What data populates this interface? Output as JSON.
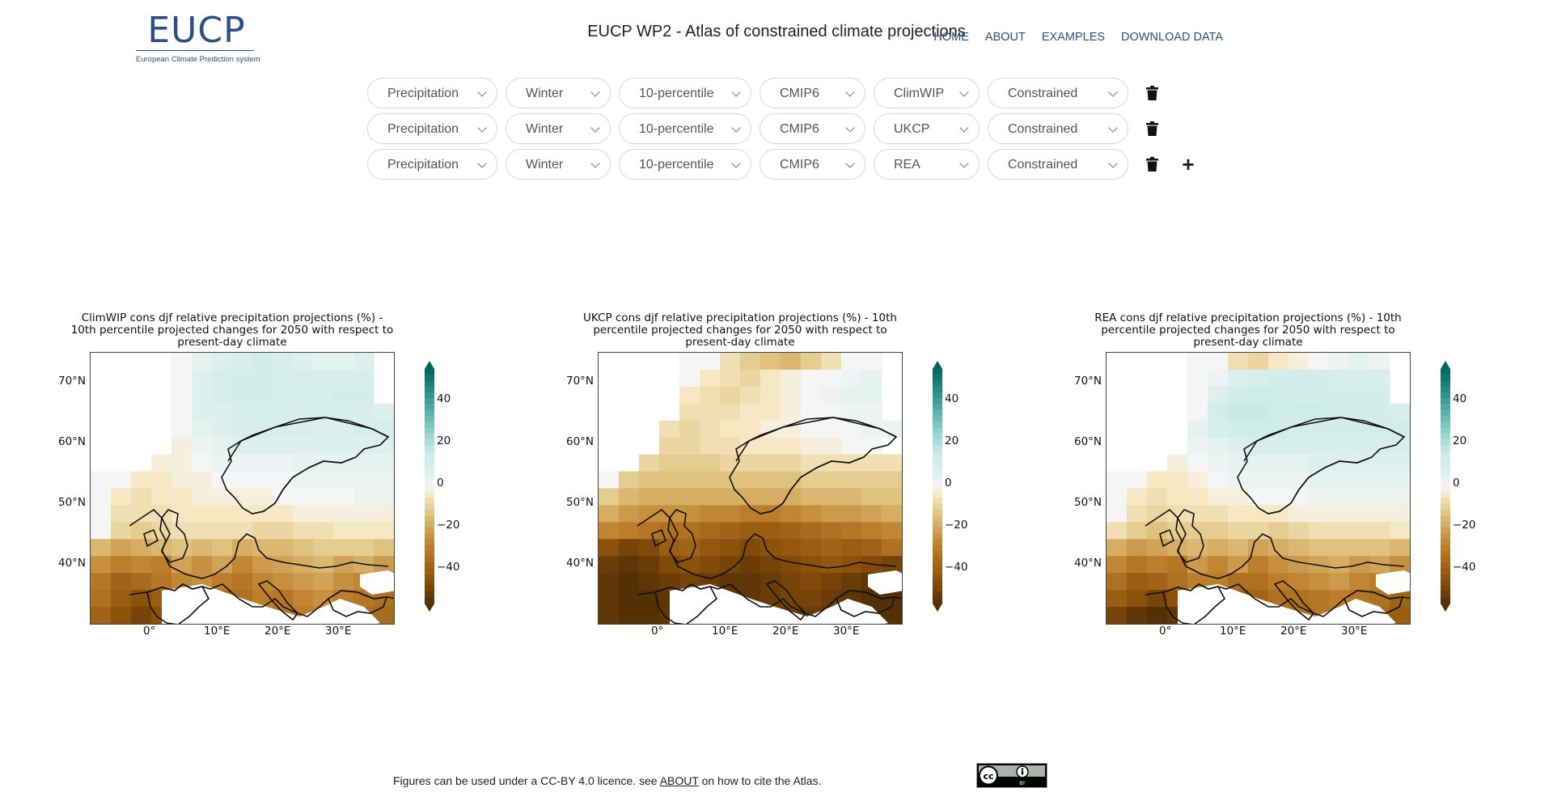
{
  "header": {
    "logo_text": "EUCP",
    "logo_subtitle": "European Climate Prediction system",
    "title": "EUCP WP2 - Atlas of constrained climate projections",
    "nav": [
      "HOME",
      "ABOUT",
      "EXAMPLES",
      "DOWNLOAD DATA"
    ]
  },
  "selector_rows": [
    {
      "variable": "Precipitation",
      "season": "Winter",
      "percentile": "10-percentile",
      "ensemble": "CMIP6",
      "method": "ClimWIP",
      "constraint": "Constrained"
    },
    {
      "variable": "Precipitation",
      "season": "Winter",
      "percentile": "10-percentile",
      "ensemble": "CMIP6",
      "method": "UKCP",
      "constraint": "Constrained"
    },
    {
      "variable": "Precipitation",
      "season": "Winter",
      "percentile": "10-percentile",
      "ensemble": "CMIP6",
      "method": "REA",
      "constraint": "Constrained"
    }
  ],
  "icons": {
    "delete": "trash-icon",
    "add": "plus-icon"
  },
  "chart_data": [
    {
      "type": "heatmap",
      "title_lines": [
        "ClimWIP cons djf relative precipitation projections (%) -",
        "10th percentile projected changes for 2050 with respect to",
        "present-day climate"
      ],
      "lat_ticks": [
        "70°N",
        "60°N",
        "50°N",
        "40°N"
      ],
      "lon_ticks": [
        "0°",
        "10°E",
        "20°E",
        "30°E"
      ],
      "colorbar_ticks": [
        "40",
        "20",
        "0",
        "−20",
        "−40"
      ],
      "colorbar_range": [
        -50,
        50
      ],
      "grid_values": [
        [
          0,
          0,
          0,
          0,
          0,
          4,
          6,
          8,
          10,
          8,
          6,
          4,
          4,
          6,
          0
        ],
        [
          0,
          0,
          0,
          0,
          0,
          6,
          8,
          10,
          10,
          8,
          8,
          8,
          8,
          8,
          0
        ],
        [
          0,
          0,
          0,
          0,
          0,
          6,
          8,
          10,
          10,
          8,
          8,
          8,
          10,
          10,
          0
        ],
        [
          0,
          0,
          0,
          0,
          0,
          6,
          6,
          8,
          8,
          8,
          8,
          8,
          8,
          8,
          6
        ],
        [
          0,
          0,
          0,
          0,
          0,
          4,
          6,
          8,
          8,
          8,
          8,
          6,
          6,
          8,
          8
        ],
        [
          0,
          0,
          0,
          0,
          -2,
          2,
          4,
          6,
          6,
          6,
          6,
          6,
          6,
          6,
          6
        ],
        [
          0,
          0,
          0,
          -2,
          -2,
          0,
          2,
          2,
          2,
          2,
          4,
          4,
          4,
          4,
          4
        ],
        [
          0,
          0,
          -4,
          -4,
          -2,
          -2,
          0,
          0,
          0,
          0,
          2,
          2,
          2,
          2,
          2
        ],
        [
          0,
          -4,
          -6,
          -4,
          -4,
          -2,
          -2,
          -2,
          -2,
          0,
          0,
          0,
          0,
          2,
          2
        ],
        [
          0,
          -6,
          -6,
          -6,
          -4,
          -4,
          -4,
          -4,
          -4,
          -4,
          -2,
          -2,
          -2,
          -2,
          -2
        ],
        [
          0,
          -8,
          -10,
          -8,
          -6,
          -6,
          -6,
          -6,
          -8,
          -8,
          -6,
          -6,
          -4,
          -4,
          -4
        ],
        [
          -14,
          -18,
          -16,
          -14,
          -12,
          -14,
          -12,
          -16,
          -14,
          -14,
          -12,
          -10,
          -10,
          -10,
          -12
        ],
        [
          -22,
          -26,
          -24,
          -26,
          -18,
          -22,
          -18,
          -24,
          -20,
          -18,
          -16,
          -14,
          -18,
          -16,
          -20
        ],
        [
          -28,
          -34,
          -32,
          -28,
          -24,
          -22,
          -26,
          -28,
          -24,
          -22,
          -20,
          -18,
          -22,
          -24,
          -26
        ],
        [
          -30,
          -36,
          -40,
          -36,
          -34,
          -30,
          -32,
          -30,
          -26,
          -28,
          -24,
          -22,
          -26,
          -28,
          -30
        ],
        [
          -34,
          -40,
          -44,
          -40,
          -38,
          -36,
          -34,
          -30,
          -28,
          -28,
          -26,
          -24,
          -28,
          -30,
          -32
        ]
      ]
    },
    {
      "type": "heatmap",
      "title_lines": [
        "UKCP cons djf relative precipitation projections (%) - 10th",
        "percentile projected changes for 2050 with respect to",
        "present-day climate"
      ],
      "lat_ticks": [
        "70°N",
        "60°N",
        "50°N",
        "40°N"
      ],
      "lon_ticks": [
        "0°",
        "10°E",
        "20°E",
        "30°E"
      ],
      "colorbar_ticks": [
        "40",
        "20",
        "0",
        "−20",
        "−40"
      ],
      "colorbar_range": [
        -50,
        50
      ],
      "grid_values": [
        [
          0,
          0,
          0,
          0,
          0,
          0,
          -6,
          -10,
          -12,
          -14,
          -10,
          -6,
          0,
          0,
          0
        ],
        [
          0,
          0,
          0,
          0,
          0,
          -4,
          -6,
          -8,
          -4,
          -2,
          0,
          0,
          2,
          4,
          0
        ],
        [
          0,
          0,
          0,
          0,
          -4,
          -6,
          -8,
          -6,
          -4,
          -2,
          0,
          2,
          4,
          4,
          0
        ],
        [
          0,
          0,
          0,
          0,
          -6,
          -6,
          -6,
          -4,
          -4,
          -2,
          0,
          0,
          2,
          2,
          0
        ],
        [
          0,
          0,
          0,
          -6,
          -8,
          -6,
          -4,
          -4,
          -2,
          -2,
          0,
          0,
          0,
          2,
          2
        ],
        [
          0,
          0,
          0,
          -8,
          -8,
          -6,
          -6,
          -4,
          -4,
          -4,
          -2,
          -2,
          0,
          0,
          0
        ],
        [
          0,
          0,
          -8,
          -10,
          -10,
          -10,
          -8,
          -8,
          -8,
          -8,
          -6,
          -6,
          -6,
          -6,
          -6
        ],
        [
          0,
          -10,
          -12,
          -12,
          -12,
          -12,
          -12,
          -12,
          -12,
          -12,
          -10,
          -10,
          -10,
          -10,
          -10
        ],
        [
          -10,
          -14,
          -16,
          -16,
          -16,
          -16,
          -16,
          -16,
          -16,
          -16,
          -14,
          -14,
          -14,
          -12,
          -12
        ],
        [
          -16,
          -20,
          -22,
          -22,
          -22,
          -24,
          -24,
          -26,
          -26,
          -24,
          -22,
          -20,
          -20,
          -18,
          -16
        ],
        [
          -24,
          -26,
          -28,
          -30,
          -30,
          -32,
          -34,
          -36,
          -36,
          -34,
          -32,
          -30,
          -28,
          -26,
          -24
        ],
        [
          -40,
          -44,
          -42,
          -36,
          -34,
          -38,
          -40,
          -42,
          -40,
          -38,
          -36,
          -34,
          -36,
          -34,
          -30
        ],
        [
          -46,
          -48,
          -46,
          -42,
          -40,
          -42,
          -44,
          -46,
          -44,
          -42,
          -40,
          -38,
          -40,
          -42,
          -44
        ],
        [
          -48,
          -50,
          -48,
          -46,
          -44,
          -46,
          -48,
          -48,
          -46,
          -44,
          -42,
          -44,
          -46,
          -48,
          -48
        ],
        [
          -48,
          -50,
          -50,
          -48,
          -46,
          -48,
          -48,
          -48,
          -46,
          -44,
          -44,
          -46,
          -48,
          -50,
          -50
        ],
        [
          -48,
          -50,
          -50,
          -48,
          -46,
          -48,
          -48,
          -48,
          -46,
          -46,
          -46,
          -48,
          -48,
          -50,
          -50
        ]
      ]
    },
    {
      "type": "heatmap",
      "title_lines": [
        "REA cons djf relative precipitation projections (%) - 10th",
        "percentile projected changes for 2050 with respect to",
        "present-day climate"
      ],
      "lat_ticks": [
        "70°N",
        "60°N",
        "50°N",
        "40°N"
      ],
      "lon_ticks": [
        "0°",
        "10°E",
        "20°E",
        "30°E"
      ],
      "colorbar_ticks": [
        "40",
        "20",
        "0",
        "−20",
        "−40"
      ],
      "colorbar_range": [
        -50,
        50
      ],
      "grid_values": [
        [
          0,
          0,
          0,
          0,
          0,
          0,
          -6,
          -8,
          -4,
          -2,
          0,
          2,
          4,
          2,
          0
        ],
        [
          0,
          0,
          0,
          0,
          0,
          2,
          6,
          8,
          10,
          10,
          10,
          8,
          8,
          8,
          0
        ],
        [
          0,
          0,
          0,
          0,
          0,
          6,
          10,
          12,
          12,
          10,
          10,
          10,
          10,
          10,
          0
        ],
        [
          0,
          0,
          0,
          0,
          0,
          10,
          14,
          14,
          12,
          12,
          12,
          10,
          10,
          10,
          8
        ],
        [
          0,
          0,
          0,
          0,
          4,
          8,
          10,
          12,
          12,
          10,
          10,
          10,
          10,
          10,
          10
        ],
        [
          0,
          0,
          0,
          0,
          2,
          4,
          6,
          8,
          8,
          8,
          8,
          8,
          8,
          8,
          8
        ],
        [
          0,
          0,
          0,
          -2,
          0,
          2,
          4,
          4,
          4,
          4,
          6,
          6,
          6,
          6,
          6
        ],
        [
          0,
          0,
          -4,
          -4,
          -2,
          0,
          2,
          2,
          2,
          2,
          4,
          4,
          4,
          4,
          4
        ],
        [
          0,
          -4,
          -6,
          -4,
          -4,
          -2,
          -2,
          0,
          0,
          0,
          2,
          2,
          2,
          2,
          2
        ],
        [
          0,
          -6,
          -8,
          -6,
          -6,
          -6,
          -4,
          -4,
          -4,
          -2,
          -2,
          -2,
          -2,
          -2,
          -2
        ],
        [
          -6,
          -10,
          -12,
          -10,
          -10,
          -10,
          -8,
          -8,
          -10,
          -8,
          -6,
          -6,
          -6,
          -6,
          -4
        ],
        [
          -16,
          -20,
          -18,
          -16,
          -14,
          -16,
          -14,
          -18,
          -16,
          -14,
          -12,
          -12,
          -12,
          -12,
          -14
        ],
        [
          -24,
          -28,
          -26,
          -28,
          -20,
          -24,
          -20,
          -26,
          -22,
          -20,
          -18,
          -16,
          -20,
          -18,
          -22
        ],
        [
          -30,
          -36,
          -34,
          -30,
          -26,
          -26,
          -30,
          -30,
          -26,
          -24,
          -22,
          -20,
          -24,
          -26,
          -28
        ],
        [
          -36,
          -40,
          -44,
          -40,
          -38,
          -34,
          -36,
          -34,
          -30,
          -30,
          -28,
          -26,
          -28,
          -30,
          -34
        ],
        [
          -44,
          -48,
          -50,
          -48,
          -44,
          -42,
          -40,
          -36,
          -32,
          -30,
          -28,
          -28,
          -30,
          -32,
          -36
        ]
      ]
    }
  ],
  "footer": {
    "text_before": "Figures can be used under a CC-BY 4.0 licence. see ",
    "link": "ABOUT",
    "text_after": " on how to cite the Atlas.",
    "license_badge": "cc-by-icon"
  }
}
